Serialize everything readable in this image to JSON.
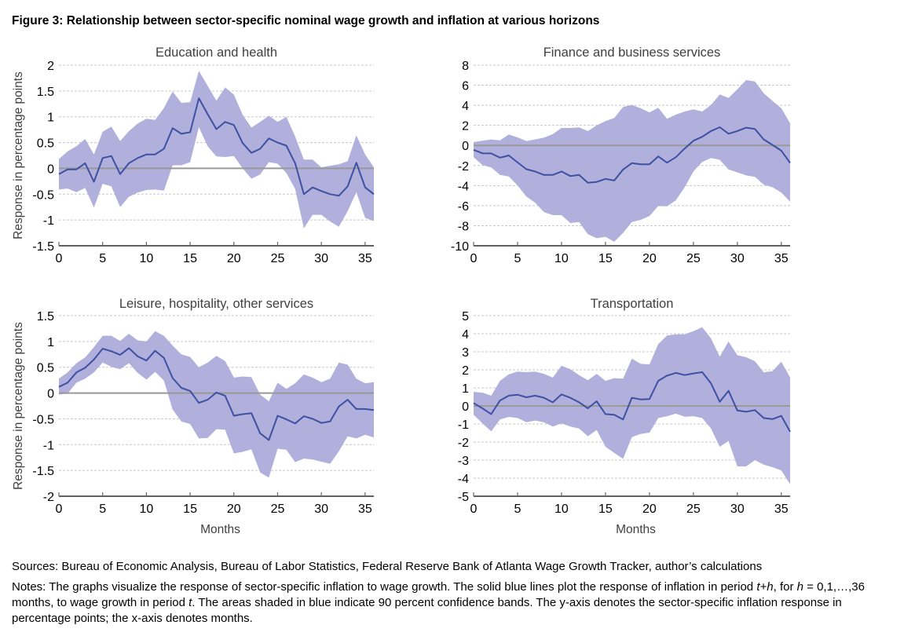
{
  "figure_title": "Figure 3: Relationship between sector-specific nominal wage growth and inflation at various horizons",
  "colors": {
    "band": "#b1afdb",
    "line": "#3d51a3",
    "zero_line": "#999999"
  },
  "footer": {
    "sources": "Sources: Bureau of Economic Analysis, Bureau of Labor Statistics, Federal Reserve Bank of Atlanta Wage Growth Tracker, author’s calculations",
    "notes_parts": [
      {
        "text": "Notes: The graphs visualize the response of sector-specific inflation to wage growth. The solid blue lines plot the response of inflation in period ",
        "italic": false
      },
      {
        "text": "t+h",
        "italic": true
      },
      {
        "text": ", for ",
        "italic": false
      },
      {
        "text": "h",
        "italic": true
      },
      {
        "text": " = 0,1,…,36 months, to wage growth in period ",
        "italic": false
      },
      {
        "text": "t",
        "italic": true
      },
      {
        "text": ". The areas shaded in blue indicate 90 percent confidence bands. The y-axis denotes the sector-specific inflation response in percentage points; the x-axis denotes months.",
        "italic": false
      }
    ]
  },
  "chart_data": [
    {
      "type": "line",
      "title": "Education and health",
      "xlabel": "",
      "ylabel": "Response in percentage points",
      "xlim": [
        0,
        36
      ],
      "ylim": [
        -1.5,
        2
      ],
      "xticks": [
        0,
        5,
        10,
        15,
        20,
        25,
        30,
        35
      ],
      "yticks": [
        -1.5,
        -1,
        -0.5,
        0,
        0.5,
        1,
        1.5,
        2
      ],
      "ytick_labels": [
        "-1.5",
        "-1",
        "-0.5",
        "0",
        "0.5",
        "1",
        "1.5",
        "2"
      ],
      "grid": true,
      "x": [
        0,
        1,
        2,
        3,
        4,
        5,
        6,
        7,
        8,
        9,
        10,
        11,
        12,
        13,
        14,
        15,
        16,
        17,
        18,
        19,
        20,
        21,
        22,
        23,
        24,
        25,
        26,
        27,
        28,
        29,
        30,
        31,
        32,
        33,
        34,
        35,
        36
      ],
      "series": [
        {
          "name": "Response",
          "values": [
            -0.11,
            -0.02,
            -0.02,
            0.1,
            -0.26,
            0.2,
            0.24,
            -0.11,
            0.1,
            0.2,
            0.27,
            0.27,
            0.38,
            0.78,
            0.67,
            0.7,
            1.36,
            1.05,
            0.76,
            0.9,
            0.84,
            0.49,
            0.3,
            0.38,
            0.58,
            0.5,
            0.44,
            0.1,
            -0.5,
            -0.37,
            -0.44,
            -0.5,
            -0.53,
            -0.35,
            0.11,
            -0.37,
            -0.5
          ]
        },
        {
          "name": "Upper 90% band",
          "values": [
            0.18,
            0.33,
            0.43,
            0.57,
            0.27,
            0.71,
            0.81,
            0.53,
            0.72,
            0.87,
            0.96,
            0.94,
            1.17,
            1.49,
            1.27,
            1.28,
            1.89,
            1.6,
            1.31,
            1.57,
            1.43,
            1.04,
            0.79,
            0.9,
            1.02,
            0.9,
            1.0,
            0.62,
            0.17,
            0.17,
            0.02,
            0.05,
            0.08,
            0.14,
            0.64,
            0.27,
            0.02
          ]
        },
        {
          "name": "Lower 90% band",
          "values": [
            -0.41,
            -0.39,
            -0.46,
            -0.38,
            -0.76,
            -0.3,
            -0.35,
            -0.75,
            -0.55,
            -0.47,
            -0.42,
            -0.41,
            -0.43,
            0.06,
            0.06,
            0.12,
            0.8,
            0.43,
            0.23,
            0.22,
            0.24,
            0.0,
            -0.2,
            -0.12,
            0.12,
            0.09,
            -0.09,
            -0.4,
            -1.16,
            -0.9,
            -0.9,
            -1.03,
            -1.13,
            -0.83,
            -0.46,
            -0.96,
            -1.02
          ]
        }
      ]
    },
    {
      "type": "line",
      "title": "Finance and business services",
      "xlabel": "",
      "ylabel": "",
      "xlim": [
        0,
        36
      ],
      "ylim": [
        -10,
        8
      ],
      "xticks": [
        0,
        5,
        10,
        15,
        20,
        25,
        30,
        35
      ],
      "yticks": [
        -10,
        -8,
        -6,
        -4,
        -2,
        0,
        2,
        4,
        6,
        8
      ],
      "ytick_labels": [
        "-10",
        "-8",
        "-6",
        "-4",
        "-2",
        "0",
        "2",
        "4",
        "6",
        "8"
      ],
      "grid": true,
      "x": [
        0,
        1,
        2,
        3,
        4,
        5,
        6,
        7,
        8,
        9,
        10,
        11,
        12,
        13,
        14,
        15,
        16,
        17,
        18,
        19,
        20,
        21,
        22,
        23,
        24,
        25,
        26,
        27,
        28,
        29,
        30,
        31,
        32,
        33,
        34,
        35,
        36
      ],
      "series": [
        {
          "name": "Response",
          "values": [
            -0.44,
            -0.78,
            -0.8,
            -1.22,
            -1.0,
            -1.7,
            -2.37,
            -2.6,
            -2.94,
            -2.94,
            -2.6,
            -3.05,
            -2.94,
            -3.72,
            -3.64,
            -3.33,
            -3.5,
            -2.4,
            -1.77,
            -1.88,
            -1.88,
            -1.09,
            -1.72,
            -1.17,
            -0.31,
            0.47,
            0.86,
            1.43,
            1.82,
            1.17,
            1.43,
            1.77,
            1.64,
            0.6,
            0.05,
            -0.52,
            -1.74
          ]
        },
        {
          "name": "Upper 90% band",
          "values": [
            0.34,
            0.47,
            0.6,
            0.5,
            1.1,
            0.8,
            0.44,
            0.6,
            0.78,
            1.12,
            1.74,
            1.74,
            1.8,
            1.43,
            2.0,
            2.42,
            2.73,
            3.83,
            4.04,
            3.7,
            3.3,
            3.75,
            2.66,
            3.07,
            3.38,
            3.59,
            3.38,
            4.04,
            5.08,
            4.74,
            5.6,
            6.51,
            6.38,
            5.2,
            4.43,
            3.7,
            2.21
          ]
        },
        {
          "name": "Lower 90% band",
          "values": [
            -1.17,
            -1.95,
            -2.2,
            -2.94,
            -3.1,
            -4.0,
            -5.1,
            -5.7,
            -6.64,
            -6.95,
            -6.95,
            -7.73,
            -7.63,
            -8.85,
            -9.25,
            -9.11,
            -9.6,
            -8.72,
            -7.63,
            -7.42,
            -7.03,
            -6.04,
            -6.07,
            -5.47,
            -4.17,
            -2.6,
            -1.64,
            -1.25,
            -1.43,
            -2.4,
            -2.68,
            -2.99,
            -3.13,
            -3.9,
            -4.17,
            -4.69,
            -5.6
          ]
        }
      ]
    },
    {
      "type": "line",
      "title": "Leisure, hospitality, other services",
      "xlabel": "Months",
      "ylabel": "Response in percentage points",
      "xlim": [
        0,
        36
      ],
      "ylim": [
        -2,
        1.5
      ],
      "xticks": [
        0,
        5,
        10,
        15,
        20,
        25,
        30,
        35
      ],
      "yticks": [
        -2,
        -1.5,
        -1,
        -0.5,
        0,
        0.5,
        1,
        1.5
      ],
      "ytick_labels": [
        "-2",
        "-1.5",
        "-1",
        "-0.5",
        "0",
        "0.5",
        "1",
        "1.5"
      ],
      "grid": true,
      "x": [
        0,
        1,
        2,
        3,
        4,
        5,
        6,
        7,
        8,
        9,
        10,
        11,
        12,
        13,
        14,
        15,
        16,
        17,
        18,
        19,
        20,
        21,
        22,
        23,
        24,
        25,
        26,
        27,
        28,
        29,
        30,
        31,
        32,
        33,
        34,
        35,
        36
      ],
      "series": [
        {
          "name": "Response",
          "values": [
            0.12,
            0.2,
            0.4,
            0.49,
            0.65,
            0.86,
            0.81,
            0.74,
            0.87,
            0.71,
            0.63,
            0.82,
            0.68,
            0.29,
            0.1,
            0.04,
            -0.19,
            -0.13,
            0.01,
            -0.05,
            -0.44,
            -0.41,
            -0.39,
            -0.78,
            -0.91,
            -0.44,
            -0.51,
            -0.59,
            -0.45,
            -0.5,
            -0.58,
            -0.55,
            -0.26,
            -0.13,
            -0.31,
            -0.31,
            -0.33
          ]
        },
        {
          "name": "Upper 90% band",
          "values": [
            0.28,
            0.4,
            0.58,
            0.69,
            0.89,
            1.11,
            1.11,
            1.01,
            1.15,
            1.02,
            1.0,
            1.2,
            1.11,
            0.92,
            0.75,
            0.7,
            0.5,
            0.59,
            0.72,
            0.62,
            0.3,
            0.32,
            0.31,
            -0.03,
            -0.16,
            0.2,
            0.08,
            0.19,
            0.36,
            0.3,
            0.21,
            0.28,
            0.59,
            0.55,
            0.28,
            0.19,
            0.21
          ]
        },
        {
          "name": "Lower 90% band",
          "values": [
            -0.03,
            -0.01,
            0.2,
            0.28,
            0.4,
            0.59,
            0.51,
            0.46,
            0.58,
            0.39,
            0.26,
            0.41,
            0.24,
            -0.32,
            -0.55,
            -0.6,
            -0.88,
            -0.87,
            -0.7,
            -0.71,
            -1.17,
            -1.14,
            -1.09,
            -1.54,
            -1.64,
            -1.08,
            -1.1,
            -1.34,
            -1.27,
            -1.29,
            -1.33,
            -1.37,
            -1.13,
            -0.84,
            -0.88,
            -0.81,
            -0.86
          ]
        }
      ]
    },
    {
      "type": "line",
      "title": "Transportation",
      "xlabel": "Months",
      "ylabel": "",
      "xlim": [
        0,
        36
      ],
      "ylim": [
        -5,
        5
      ],
      "xticks": [
        0,
        5,
        10,
        15,
        20,
        25,
        30,
        35
      ],
      "yticks": [
        -5,
        -4,
        -3,
        -2,
        -1,
        0,
        1,
        2,
        3,
        4,
        5
      ],
      "ytick_labels": [
        "-5",
        "-4",
        "-3",
        "-2",
        "-1",
        "0",
        "1",
        "2",
        "3",
        "4",
        "5"
      ],
      "grid": true,
      "x": [
        0,
        1,
        2,
        3,
        4,
        5,
        6,
        7,
        8,
        9,
        10,
        11,
        12,
        13,
        14,
        15,
        16,
        17,
        18,
        19,
        20,
        21,
        22,
        23,
        24,
        25,
        26,
        27,
        28,
        29,
        30,
        31,
        32,
        33,
        34,
        35,
        36
      ],
      "series": [
        {
          "name": "Response",
          "values": [
            0.16,
            -0.13,
            -0.45,
            0.3,
            0.57,
            0.62,
            0.48,
            0.57,
            0.45,
            0.2,
            0.64,
            0.45,
            0.2,
            -0.13,
            0.26,
            -0.45,
            -0.49,
            -0.75,
            0.45,
            0.36,
            0.38,
            1.39,
            1.68,
            1.83,
            1.71,
            1.8,
            1.87,
            1.25,
            0.23,
            0.84,
            -0.25,
            -0.32,
            -0.23,
            -0.67,
            -0.73,
            -0.55,
            -1.43
          ]
        },
        {
          "name": "Upper 90% band",
          "values": [
            0.78,
            0.74,
            0.57,
            1.39,
            1.75,
            1.9,
            1.87,
            1.9,
            1.78,
            1.57,
            2.22,
            2.04,
            1.71,
            1.42,
            1.78,
            1.39,
            1.54,
            1.51,
            2.62,
            2.33,
            2.3,
            3.42,
            3.9,
            3.97,
            3.97,
            4.14,
            4.36,
            3.74,
            2.73,
            3.57,
            2.81,
            2.7,
            2.48,
            1.86,
            1.93,
            2.45,
            1.57
          ]
        },
        {
          "name": "Lower 90% band",
          "values": [
            -0.49,
            -0.96,
            -1.41,
            -0.75,
            -0.61,
            -0.67,
            -0.9,
            -0.81,
            -0.9,
            -1.14,
            -0.96,
            -1.14,
            -1.25,
            -1.68,
            -1.33,
            -2.26,
            -2.6,
            -2.93,
            -1.73,
            -1.55,
            -1.48,
            -0.67,
            -0.57,
            -0.42,
            -0.6,
            -0.57,
            -0.67,
            -1.25,
            -2.26,
            -1.94,
            -3.35,
            -3.35,
            -3.0,
            -3.25,
            -3.39,
            -3.57,
            -4.33
          ]
        }
      ]
    }
  ]
}
